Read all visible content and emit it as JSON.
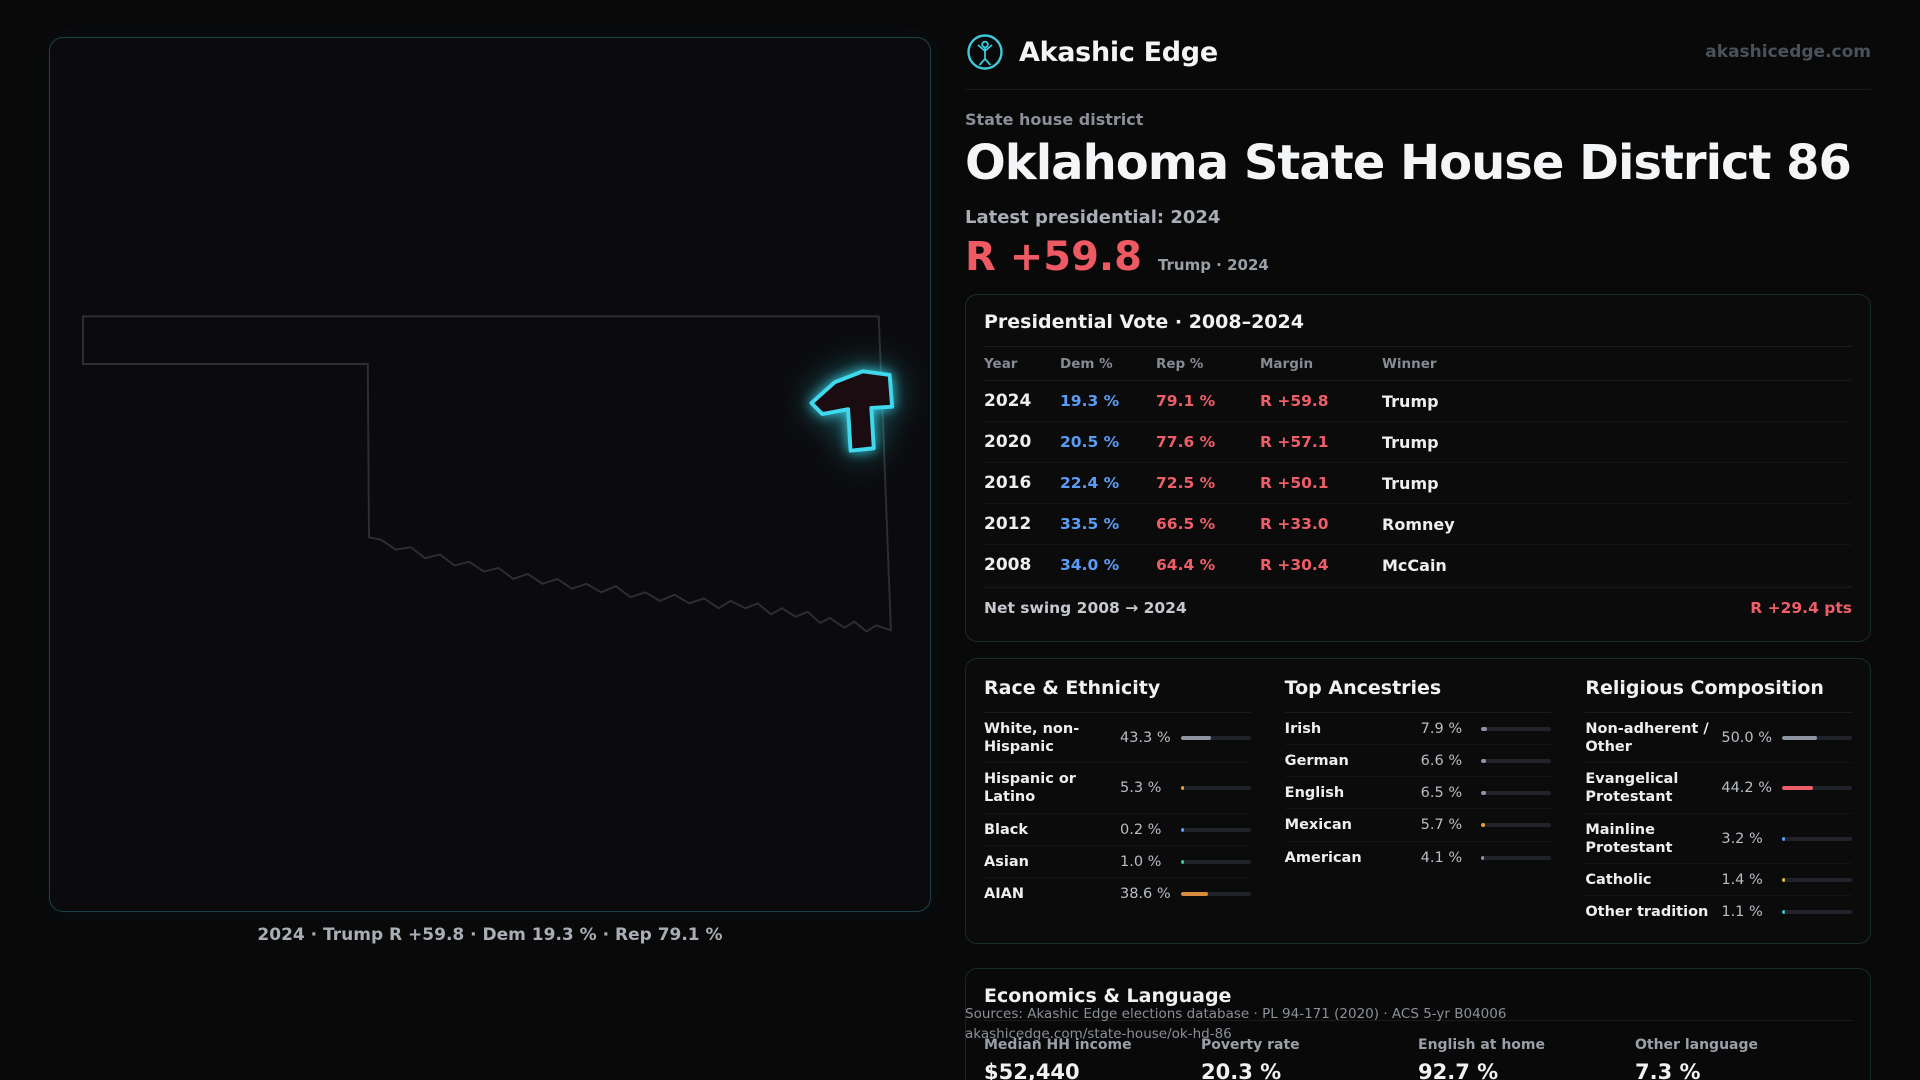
{
  "brand": {
    "name": "Akashic Edge",
    "domain": "akashicedge.com",
    "logo_icon": "akashic-edge-logo"
  },
  "page": {
    "eyebrow": "State house district",
    "title": "Oklahoma State House District 86",
    "latest_label": "Latest presidential: 2024",
    "margin_value": "R +59.8",
    "margin_context": "Trump · 2024"
  },
  "map": {
    "caption": "2024 · Trump R +59.8 · Dem 19.3 % · Rep 79.1 %",
    "highlight_color": "#3fd8ec",
    "outline_color": "#2c2e33"
  },
  "vote": {
    "title": "Presidential Vote · 2008–2024",
    "columns": [
      "Year",
      "Dem %",
      "Rep %",
      "Margin",
      "Winner"
    ],
    "rows": [
      {
        "year": "2024",
        "dem": "19.3 %",
        "rep": "79.1 %",
        "margin": "R +59.8",
        "winner": "Trump"
      },
      {
        "year": "2020",
        "dem": "20.5 %",
        "rep": "77.6 %",
        "margin": "R +57.1",
        "winner": "Trump"
      },
      {
        "year": "2016",
        "dem": "22.4 %",
        "rep": "72.5 %",
        "margin": "R +50.1",
        "winner": "Trump"
      },
      {
        "year": "2012",
        "dem": "33.5 %",
        "rep": "66.5 %",
        "margin": "R +33.0",
        "winner": "Romney"
      },
      {
        "year": "2008",
        "dem": "34.0 %",
        "rep": "64.4 %",
        "margin": "R +30.4",
        "winner": "McCain"
      }
    ],
    "net_swing_label": "Net swing 2008 → 2024",
    "net_swing_value": "R +29.4 pts"
  },
  "demo": {
    "race": {
      "title": "Race & Ethnicity",
      "rows": [
        {
          "label": "White, non-Hispanic",
          "value": "43.3 %",
          "pct": 43.3,
          "color": "#8f96a3"
        },
        {
          "label": "Hispanic or Latino",
          "value": "5.3 %",
          "pct": 5.3,
          "color": "#e8a33d"
        },
        {
          "label": "Black",
          "value": "0.2 %",
          "pct": 0.2,
          "color": "#5b9cf5"
        },
        {
          "label": "Asian",
          "value": "1.0 %",
          "pct": 1.0,
          "color": "#3bc98f"
        },
        {
          "label": "AIAN",
          "value": "38.6 %",
          "pct": 38.6,
          "color": "#d98c3f"
        }
      ]
    },
    "ancestry": {
      "title": "Top Ancestries",
      "rows": [
        {
          "label": "Irish",
          "value": "7.9 %",
          "pct": 7.9,
          "color": "#8f96a3"
        },
        {
          "label": "German",
          "value": "6.6 %",
          "pct": 6.6,
          "color": "#8f96a3"
        },
        {
          "label": "English",
          "value": "6.5 %",
          "pct": 6.5,
          "color": "#8f96a3"
        },
        {
          "label": "Mexican",
          "value": "5.7 %",
          "pct": 5.7,
          "color": "#e8a33d"
        },
        {
          "label": "American",
          "value": "4.1 %",
          "pct": 4.1,
          "color": "#8f96a3"
        }
      ]
    },
    "religion": {
      "title": "Religious Composition",
      "rows": [
        {
          "label": "Non-adherent / Other",
          "value": "50.0 %",
          "pct": 50.0,
          "color": "#8f96a3"
        },
        {
          "label": "Evangelical Protestant",
          "value": "44.2 %",
          "pct": 44.2,
          "color": "#ee5e68"
        },
        {
          "label": "Mainline Protestant",
          "value": "3.2 %",
          "pct": 3.2,
          "color": "#5b9cf5"
        },
        {
          "label": "Catholic",
          "value": "1.4 %",
          "pct": 1.4,
          "color": "#d6c03c"
        },
        {
          "label": "Other tradition",
          "value": "1.1 %",
          "pct": 1.1,
          "color": "#35c8c0"
        }
      ]
    }
  },
  "econ": {
    "title": "Economics & Language",
    "stats": [
      {
        "label": "Median HH income",
        "value": "$52,440"
      },
      {
        "label": "Poverty rate",
        "value": "20.3 %"
      },
      {
        "label": "English at home",
        "value": "92.7 %"
      },
      {
        "label": "Other language",
        "value": "7.3 %"
      }
    ]
  },
  "footer": {
    "sources": "Sources: Akashic Edge elections database · PL 94-171 (2020) · ACS 5-yr B04006",
    "permalink": "akashicedge.com/state-house/ok-hd-86"
  }
}
